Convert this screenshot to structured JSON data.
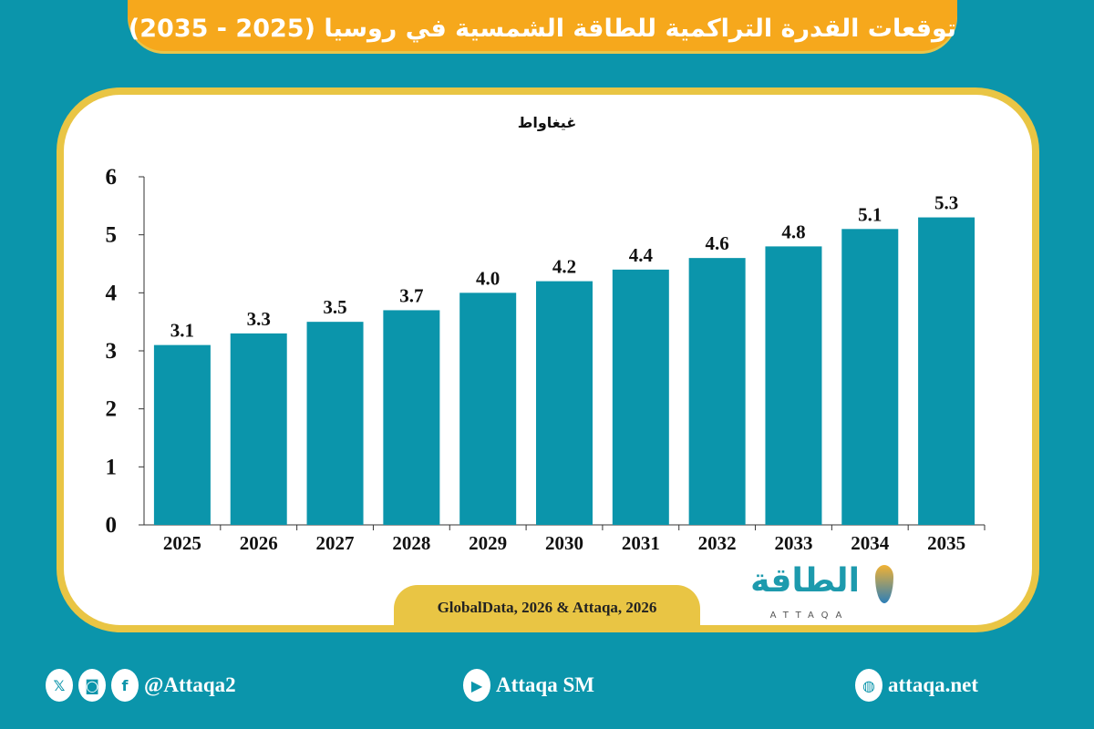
{
  "title": "توقعات القدرة التراكمية للطاقة الشمسية في روسيا (2025 - 2035)",
  "chart_data": {
    "type": "bar",
    "ylabel": "غيغاواط",
    "categories": [
      "2025",
      "2026",
      "2027",
      "2028",
      "2029",
      "2030",
      "2031",
      "2032",
      "2033",
      "2034",
      "2035"
    ],
    "values": [
      3.1,
      3.3,
      3.5,
      3.7,
      4.0,
      4.2,
      4.4,
      4.6,
      4.8,
      5.1,
      5.3
    ],
    "data_labels": [
      "3.1",
      "3.3",
      "3.5",
      "3.7",
      "4.0",
      "4.2",
      "4.4",
      "4.6",
      "4.8",
      "5.1",
      "5.3"
    ],
    "ylim": [
      0,
      6
    ],
    "yticks": [
      "0",
      "1",
      "2",
      "3",
      "4",
      "5",
      "6"
    ],
    "grid": false,
    "bar_color": "#0b95ab"
  },
  "source": "GlobalData, 2026 & Attaqa, 2026",
  "logo": {
    "arabic": "الطاقة",
    "latin": "ATTAQA"
  },
  "footer": {
    "social_handle": "@Attaqa2",
    "youtube": "Attaqa SM",
    "website": "attaqa.net",
    "icons": [
      "x-icon",
      "instagram-icon",
      "facebook-icon",
      "youtube-icon",
      "globe-icon"
    ]
  },
  "colors": {
    "background": "#0b95ab",
    "banner": "#f6a81c",
    "frame": "#e9c544"
  }
}
